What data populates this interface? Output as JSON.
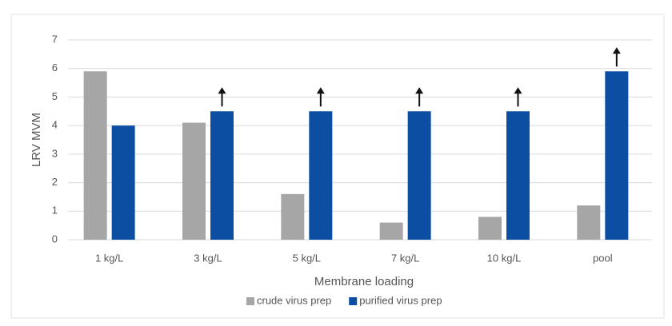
{
  "chart_data": {
    "type": "bar",
    "categories": [
      "1 kg/L",
      "3 kg/L",
      "5 kg/L",
      "7 kg/L",
      "10 kg/L",
      "pool"
    ],
    "series": [
      {
        "name": "crude virus prep",
        "color": "#a6a6a6",
        "values": [
          5.9,
          4.1,
          1.6,
          0.6,
          0.8,
          1.2
        ]
      },
      {
        "name": "purified virus prep",
        "color": "#0b4ea2",
        "values": [
          4.0,
          4.5,
          4.5,
          4.5,
          4.5,
          5.9
        ],
        "lower_bound": [
          false,
          true,
          true,
          true,
          true,
          true
        ]
      }
    ],
    "xlabel": "Membrane loading",
    "ylabel": "LRV MVM",
    "ylim": [
      0,
      7
    ],
    "yticks": [
      0,
      1,
      2,
      3,
      4,
      5,
      6,
      7
    ],
    "grid": true,
    "legend": "bottom"
  }
}
